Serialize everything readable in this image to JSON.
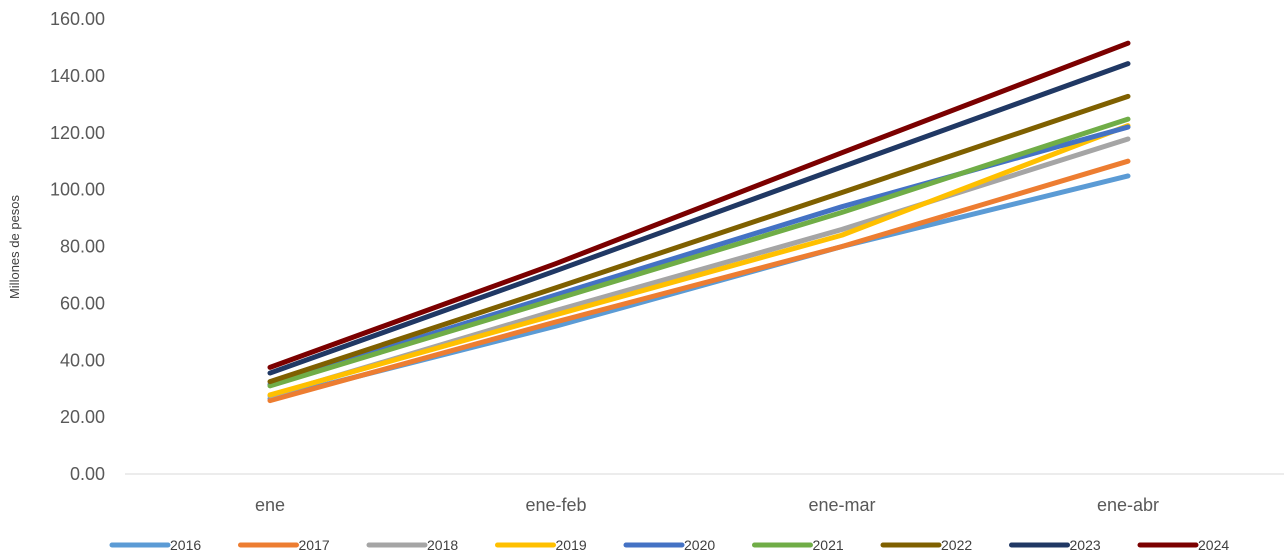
{
  "chart_data": {
    "type": "line",
    "title": "",
    "xlabel": "",
    "ylabel": "Millones de pesos",
    "ylim": [
      0,
      160
    ],
    "yticks": [
      0,
      20,
      40,
      60,
      80,
      100,
      120,
      140,
      160
    ],
    "ytick_labels": [
      "0.00",
      "20.00",
      "40.00",
      "60.00",
      "80.00",
      "100.00",
      "120.00",
      "140.00",
      "160.00"
    ],
    "categories": [
      "ene",
      "ene-feb",
      "ene-mar",
      "ene-abr"
    ],
    "grid": false,
    "legend_position": "bottom",
    "series": [
      {
        "name": "2016",
        "color": "#5B9BD5",
        "values": [
          26.5,
          52.0,
          80.0,
          104.8
        ]
      },
      {
        "name": "2017",
        "color": "#ED7D31",
        "values": [
          25.8,
          53.5,
          80.0,
          110.0
        ]
      },
      {
        "name": "2018",
        "color": "#A5A5A5",
        "values": [
          27.5,
          57.5,
          86.0,
          117.8
        ]
      },
      {
        "name": "2019",
        "color": "#FFC000",
        "values": [
          27.8,
          56.0,
          84.0,
          122.5
        ]
      },
      {
        "name": "2020",
        "color": "#4472C4",
        "values": [
          31.5,
          63.0,
          94.0,
          122.0
        ]
      },
      {
        "name": "2021",
        "color": "#70AD47",
        "values": [
          31.0,
          61.5,
          92.0,
          124.8
        ]
      },
      {
        "name": "2022",
        "color": "#7F6000",
        "values": [
          32.5,
          65.5,
          99.0,
          132.8
        ]
      },
      {
        "name": "2023",
        "color": "#203864",
        "values": [
          35.5,
          71.5,
          108.0,
          144.3
        ]
      },
      {
        "name": "2024",
        "color": "#7B0000",
        "values": [
          37.5,
          74.0,
          113.0,
          151.5
        ]
      }
    ]
  }
}
